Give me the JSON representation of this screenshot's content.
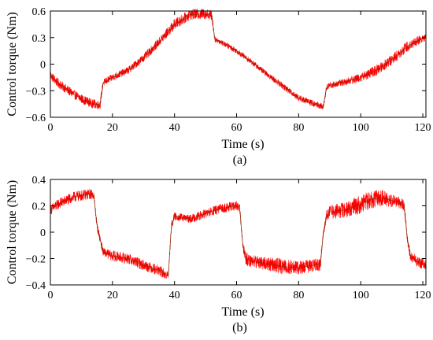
{
  "chart_data": [
    {
      "type": "line",
      "panel_label": "(a)",
      "xlabel": "Time (s)",
      "ylabel": "Control torque (Nm)",
      "xlim": [
        0,
        121
      ],
      "ylim": [
        -0.6,
        0.6
      ],
      "xticks": [
        0,
        20,
        40,
        60,
        80,
        100,
        120
      ],
      "xtick_labels": [
        "0",
        "20",
        "40",
        "60",
        "80",
        "100",
        "120"
      ],
      "yticks": [
        0.6,
        0.3,
        0,
        -0.3,
        -0.6
      ],
      "ytick_labels": [
        "0.6",
        "0.3",
        "0",
        "−0.3",
        "−0.6"
      ],
      "grid": false,
      "series": [
        {
          "color": "#ff0000",
          "x": [
            0,
            2,
            5,
            8,
            11,
            14,
            16,
            17,
            18,
            20,
            25,
            30,
            35,
            40,
            45,
            50,
            52,
            53,
            55,
            60,
            65,
            70,
            75,
            80,
            85,
            88,
            89,
            90,
            95,
            100,
            105,
            110,
            115,
            118,
            120,
            121
          ],
          "y": [
            -0.12,
            -0.2,
            -0.28,
            -0.35,
            -0.41,
            -0.45,
            -0.46,
            -0.21,
            -0.19,
            -0.15,
            -0.07,
            0.07,
            0.25,
            0.45,
            0.56,
            0.57,
            0.55,
            0.28,
            0.25,
            0.15,
            0.02,
            -0.12,
            -0.25,
            -0.38,
            -0.45,
            -0.48,
            -0.26,
            -0.24,
            -0.2,
            -0.15,
            -0.07,
            0.05,
            0.2,
            0.26,
            0.29,
            0.3
          ],
          "noise": [
            0.05,
            0.05,
            0.05,
            0.05,
            0.05,
            0.05,
            0.05,
            0.04,
            0.04,
            0.04,
            0.04,
            0.045,
            0.05,
            0.06,
            0.06,
            0.06,
            0.06,
            0.03,
            0.03,
            0.03,
            0.03,
            0.03,
            0.035,
            0.035,
            0.035,
            0.035,
            0.035,
            0.035,
            0.04,
            0.05,
            0.06,
            0.06,
            0.06,
            0.05,
            0.05,
            0.05
          ]
        }
      ]
    },
    {
      "type": "line",
      "panel_label": "(b)",
      "xlabel": "Time (s)",
      "ylabel": "Control torque (Nm)",
      "xlim": [
        0,
        121
      ],
      "ylim": [
        -0.4,
        0.4
      ],
      "xticks": [
        0,
        20,
        40,
        60,
        80,
        100,
        120
      ],
      "xtick_labels": [
        "0",
        "20",
        "40",
        "60",
        "80",
        "100",
        "120"
      ],
      "yticks": [
        0.4,
        0.2,
        0,
        -0.2,
        -0.4
      ],
      "ytick_labels": [
        "0.4",
        "0.2",
        "0",
        "−0.2",
        "−0.4"
      ],
      "grid": false,
      "series": [
        {
          "color": "#ff0000",
          "x": [
            0,
            3,
            8,
            13,
            14,
            15,
            17,
            20,
            25,
            30,
            35,
            37,
            38,
            39,
            40,
            45,
            50,
            55,
            60,
            61,
            62,
            63,
            65,
            70,
            75,
            80,
            85,
            87,
            88,
            89,
            90,
            95,
            100,
            103,
            107,
            110,
            113,
            114,
            115,
            116,
            118,
            120,
            121
          ],
          "y": [
            0.17,
            0.22,
            0.27,
            0.29,
            0.28,
            0.05,
            -0.15,
            -0.18,
            -0.2,
            -0.25,
            -0.29,
            -0.32,
            -0.33,
            0.05,
            0.12,
            0.1,
            0.14,
            0.18,
            0.2,
            0.18,
            -0.1,
            -0.2,
            -0.22,
            -0.24,
            -0.26,
            -0.27,
            -0.25,
            -0.24,
            0.0,
            0.13,
            0.15,
            0.17,
            0.21,
            0.25,
            0.26,
            0.24,
            0.22,
            0.2,
            -0.05,
            -0.18,
            -0.22,
            -0.24,
            -0.25
          ],
          "noise": [
            0.04,
            0.04,
            0.04,
            0.04,
            0.03,
            0.03,
            0.03,
            0.04,
            0.04,
            0.04,
            0.04,
            0.04,
            0.03,
            0.03,
            0.03,
            0.03,
            0.035,
            0.035,
            0.035,
            0.03,
            0.03,
            0.05,
            0.05,
            0.05,
            0.06,
            0.05,
            0.05,
            0.05,
            0.03,
            0.04,
            0.05,
            0.06,
            0.07,
            0.07,
            0.06,
            0.05,
            0.04,
            0.04,
            0.03,
            0.04,
            0.04,
            0.04,
            0.04
          ]
        }
      ]
    }
  ]
}
